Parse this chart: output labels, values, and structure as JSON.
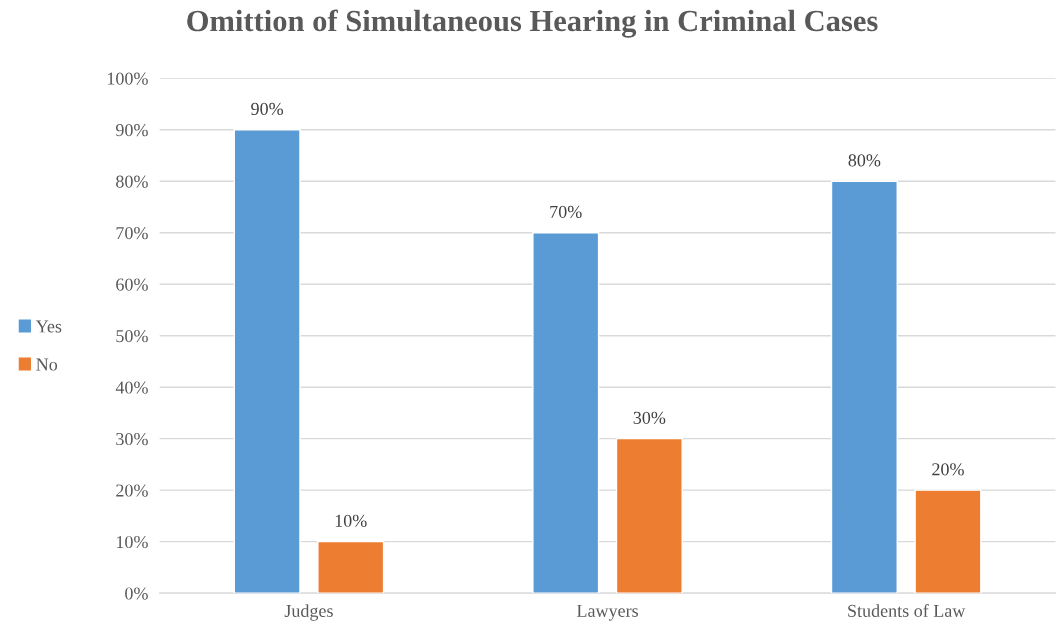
{
  "chart_data": {
    "type": "bar",
    "title": "Omittion of Simultaneous Hearing in Criminal Cases",
    "categories": [
      "Judges",
      "Lawyers",
      "Students of Law"
    ],
    "series": [
      {
        "name": "Yes",
        "color": "#5b9bd5",
        "values": [
          90,
          70,
          80
        ],
        "value_labels": [
          "90%",
          "70%",
          "80%"
        ]
      },
      {
        "name": "No",
        "color": "#ed7d31",
        "values": [
          10,
          30,
          20
        ],
        "value_labels": [
          "10%",
          "30%",
          "20%"
        ]
      }
    ],
    "ylim": [
      0,
      100
    ],
    "yticks": [
      {
        "value": 0,
        "label": "0%"
      },
      {
        "value": 10,
        "label": "10%"
      },
      {
        "value": 20,
        "label": "20%"
      },
      {
        "value": 30,
        "label": "30%"
      },
      {
        "value": 40,
        "label": "40%"
      },
      {
        "value": 50,
        "label": "50%"
      },
      {
        "value": 60,
        "label": "60%"
      },
      {
        "value": 70,
        "label": "70%"
      },
      {
        "value": 80,
        "label": "80%"
      },
      {
        "value": 90,
        "label": "90%"
      },
      {
        "value": 100,
        "label": "100%"
      }
    ],
    "grid": "y",
    "legend": "left"
  }
}
